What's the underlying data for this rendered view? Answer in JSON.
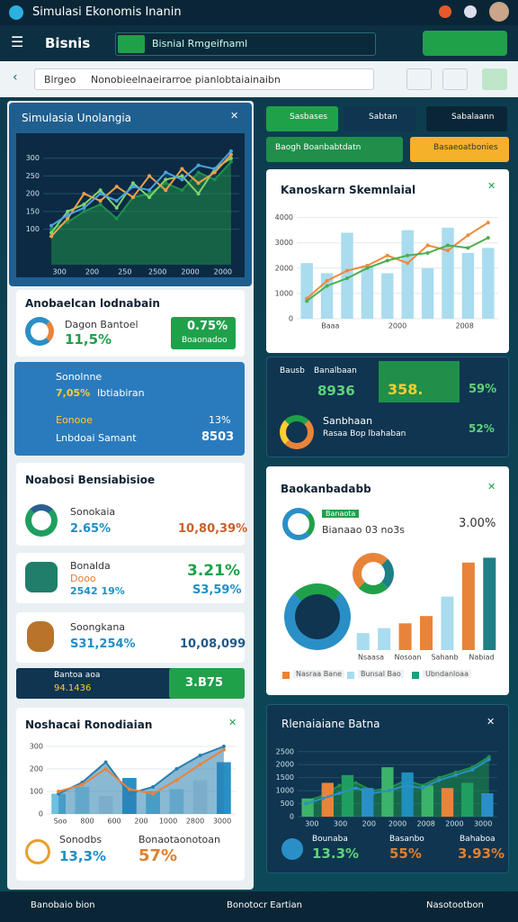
{
  "header": {
    "title": "Simulasi Ekonomis Inanin"
  },
  "nav": {
    "brand": "Bisnis",
    "search": "Bisnial Rmgeifnaml"
  },
  "breadcrumb": {
    "back": "Blrgeo",
    "path": "Nonobieelnaeirarroe pianlobtaiainaibn"
  },
  "sim_panel": {
    "title": "Simulasia Unolangia",
    "chart": {
      "ylim": [
        0,
        350
      ],
      "yticks": [
        100,
        150,
        200,
        250,
        300
      ],
      "xlabels": [
        "300",
        "200",
        "250",
        "2500",
        "2000",
        "2000"
      ],
      "series": [
        {
          "type": "area",
          "color": "#1f8f4a",
          "values": [
            100,
            120,
            150,
            170,
            130,
            190,
            200,
            230,
            210,
            260,
            240,
            290
          ]
        },
        {
          "type": "line",
          "color": "#7fd36b",
          "values": [
            90,
            150,
            170,
            210,
            160,
            230,
            190,
            240,
            250,
            200,
            270,
            300
          ]
        },
        {
          "type": "line",
          "color": "#f0a04b",
          "values": [
            80,
            130,
            200,
            180,
            220,
            190,
            250,
            210,
            270,
            230,
            260,
            310
          ]
        },
        {
          "type": "line",
          "color": "#4aa3df",
          "values": [
            110,
            140,
            160,
            200,
            180,
            220,
            210,
            260,
            240,
            280,
            270,
            320
          ]
        }
      ]
    }
  },
  "summary_card": {
    "title": "Anobaelcan lodnabain",
    "label": "Dagon Bantoel",
    "value": "11,5%",
    "badge_value": "0.75%",
    "badge_label": "Boaonadoo"
  },
  "settings_card": {
    "rows": [
      {
        "label": "Sonolnne",
        "value": "7,05%",
        "note": "Ibtiabiran"
      },
      {
        "label": "Eonooe",
        "value": "13%"
      },
      {
        "label": "Lnbdoai Samant",
        "value": "8503"
      }
    ]
  },
  "list_card": {
    "title": "Noabosi Bensiabisioe",
    "items": [
      {
        "name": "Sonokaia",
        "value": "2.65%",
        "right": "10,80,39%"
      },
      {
        "name": "Bonalda",
        "sub": "Dooo",
        "value": "2542 19%",
        "right_top": "3.21%",
        "right": "S3,59%"
      },
      {
        "name": "Soongkana",
        "value": "S31,254%",
        "right": "10,08,099"
      }
    ]
  },
  "status_bar": {
    "label": "Bantoa aoa",
    "value": "94.1436",
    "badge": "3.B75"
  },
  "bottom_left": {
    "title": "Noshacai Ronodiaian",
    "chart": {
      "ylim": [
        0,
        320
      ],
      "yticks": [
        0,
        100,
        200,
        300
      ],
      "xlabels": [
        "Soo",
        "800",
        "600",
        "200",
        "1000",
        "2800",
        "3000"
      ],
      "series": [
        {
          "type": "bar",
          "colors": [
            "#6cc0e0",
            "#a8d8ec",
            "#dfe6ea",
            "#2a8fc6",
            "#6cc0e0",
            "#a8d8ec",
            "#dfe6ea",
            "#2a8fc6"
          ],
          "values": [
            90,
            120,
            80,
            160,
            100,
            110,
            150,
            230
          ]
        },
        {
          "type": "area",
          "color": "#2a7fb0",
          "values": [
            90,
            140,
            230,
            90,
            120,
            200,
            260,
            300
          ]
        },
        {
          "type": "line",
          "color": "#e8843a",
          "values": [
            100,
            130,
            200,
            110,
            90,
            150,
            220,
            285
          ]
        }
      ]
    },
    "stats": [
      {
        "label": "Sonodbs",
        "value": "13,3%"
      },
      {
        "label": "Bonaotaonotoan",
        "value": "57%"
      }
    ]
  },
  "tabs": [
    "Sasbases",
    "Sabtan",
    "Sabalaann"
  ],
  "filters": {
    "select": "Baogh Boanbabtdatn",
    "button": "Basaeoatbonies"
  },
  "right_chart": {
    "title": "Kanoskarn Skemnlaial",
    "chart": {
      "ylim": [
        0,
        4200
      ],
      "yticks": [
        0,
        1000,
        2000,
        3000,
        4000
      ],
      "xlabels": [
        "Baaa",
        "2000",
        "2008"
      ],
      "series": [
        {
          "type": "bar",
          "color": "#a9dcee",
          "values": [
            2200,
            1800,
            3400,
            2100,
            1800,
            3500,
            2000,
            3600,
            2600,
            2800
          ]
        },
        {
          "type": "line",
          "color": "#f08a3a",
          "values": [
            800,
            1500,
            1900,
            2100,
            2500,
            2200,
            2900,
            2700,
            3300,
            3800
          ]
        },
        {
          "type": "line",
          "color": "#4caf50",
          "values": [
            700,
            1300,
            1600,
            2000,
            2300,
            2500,
            2600,
            2900,
            2800,
            3200
          ]
        }
      ]
    }
  },
  "kpi_card": {
    "label1": "Bausb",
    "label2": "Banalbaan",
    "v1": "8936",
    "v2": "358.",
    "v3": "59%",
    "title2": "Sanbhaan",
    "sub2": "Rasaa Bop lbahaban",
    "v4": "52%"
  },
  "breakdown": {
    "title": "Baokanbadabb",
    "tag": "Banaota",
    "label": "Bianaao 03 no3s",
    "value": "3.00%",
    "chart": {
      "ylim": [
        0,
        4000
      ],
      "xlabels": [
        "Nsaasa",
        "Nosoan",
        "Sahanb",
        "Nabiad"
      ],
      "series": [
        {
          "type": "bar",
          "colors": [
            "#a9dcee",
            "#a9dcee",
            "#e8843a",
            "#e8843a",
            "#a9dcee",
            "#e8843a",
            "#1f7f86"
          ],
          "values": [
            700,
            900,
            1100,
            1400,
            2200,
            3600,
            3800
          ]
        }
      ]
    },
    "legend": [
      {
        "name": "Nasraa Bane",
        "color": "#e8843a"
      },
      {
        "name": "Bunsal Bao",
        "color": "#a9dcee"
      },
      {
        "name": "Ubndanloaa",
        "color": "#1f9f7f"
      }
    ]
  },
  "bottom_right": {
    "title": "Rlenaiaiane Batna",
    "chart": {
      "ylim": [
        0,
        2700
      ],
      "yticks": [
        0,
        500,
        1000,
        1500,
        2000,
        2500
      ],
      "xlabels": [
        "300",
        "300",
        "200",
        "2000",
        "2008",
        "2000",
        "3000"
      ],
      "series": [
        {
          "type": "area",
          "color": "#1f8f4a",
          "values": [
            600,
            800,
            1200,
            1300,
            1000,
            1100,
            1400,
            1200,
            1500,
            1700,
            1900,
            2300
          ]
        },
        {
          "type": "bar",
          "colors": [
            "#3cb36a",
            "#e8843a",
            "#1f9f5f",
            "#2a8fc6",
            "#3cb36a",
            "#1f8fbf",
            "#3cb36a",
            "#e8843a",
            "#1f9f5f",
            "#2a8fc6"
          ],
          "values": [
            700,
            1300,
            1600,
            1100,
            1900,
            1700,
            1200,
            1100,
            1300,
            900
          ]
        },
        {
          "type": "line",
          "color": "#2a8fc6",
          "values": [
            500,
            700,
            900,
            1100,
            900,
            1000,
            1200,
            1100,
            1400,
            1600,
            1800,
            2200
          ]
        }
      ]
    },
    "stats": [
      {
        "label": "Bounaba",
        "value": "13.3%"
      },
      {
        "label": "Basanbo",
        "value": "55%"
      },
      {
        "label": "Bahaboa",
        "value": "3.93%"
      }
    ]
  },
  "footer": [
    "Banobaio bion",
    "Bonotocr Eartian",
    "Nasotootbon"
  ]
}
